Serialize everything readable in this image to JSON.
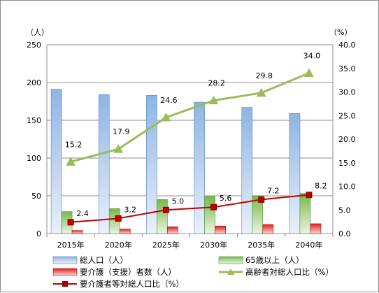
{
  "chart_data": {
    "type": "bar",
    "categories": [
      "2015年",
      "2020年",
      "2025年",
      "2030年",
      "2035年",
      "2040年"
    ],
    "left_axis": {
      "unit": "（人）",
      "ylim": [
        0,
        250
      ],
      "ticks": [
        "0",
        "50",
        "100",
        "150",
        "200",
        "250"
      ]
    },
    "right_axis": {
      "unit": "（%）",
      "ylim": [
        0,
        40
      ],
      "ticks": [
        "0.0",
        "5.0",
        "10.0",
        "15.0",
        "20.0",
        "25.0",
        "30.0",
        "35.0",
        "40.0"
      ]
    },
    "grid": true,
    "legend_position": "bottom",
    "series": [
      {
        "name": "総人口（人）",
        "type": "bar",
        "axis": "left",
        "color": "#8eb4e3",
        "values": [
          191,
          184,
          183,
          174,
          167,
          159
        ]
      },
      {
        "name": "65歳以上（人）",
        "type": "bar",
        "axis": "left",
        "color": "#77b84a",
        "values": [
          29,
          33,
          45,
          49,
          50,
          53
        ]
      },
      {
        "name": "要介護（支援）者数（人）",
        "type": "bar",
        "axis": "left",
        "color": "#e02020",
        "values": [
          4,
          6,
          9,
          10,
          12,
          13
        ]
      },
      {
        "name": "高齢者対総人口比（%）",
        "type": "line",
        "axis": "right",
        "color": "#9bbb59",
        "marker": "triangle",
        "values": [
          15.2,
          17.9,
          24.6,
          28.2,
          29.8,
          34.0
        ],
        "labels": [
          "15.2",
          "17.9",
          "24.6",
          "28.2",
          "29.8",
          "34.0"
        ]
      },
      {
        "name": "要介護者等対総人口比（%）",
        "type": "line",
        "axis": "right",
        "color": "#c00000",
        "marker": "square",
        "values": [
          2.4,
          3.2,
          5.0,
          5.6,
          7.2,
          8.2
        ],
        "labels": [
          "2.4",
          "3.2",
          "5.0",
          "5.6",
          "7.2",
          "8.2"
        ]
      }
    ]
  }
}
